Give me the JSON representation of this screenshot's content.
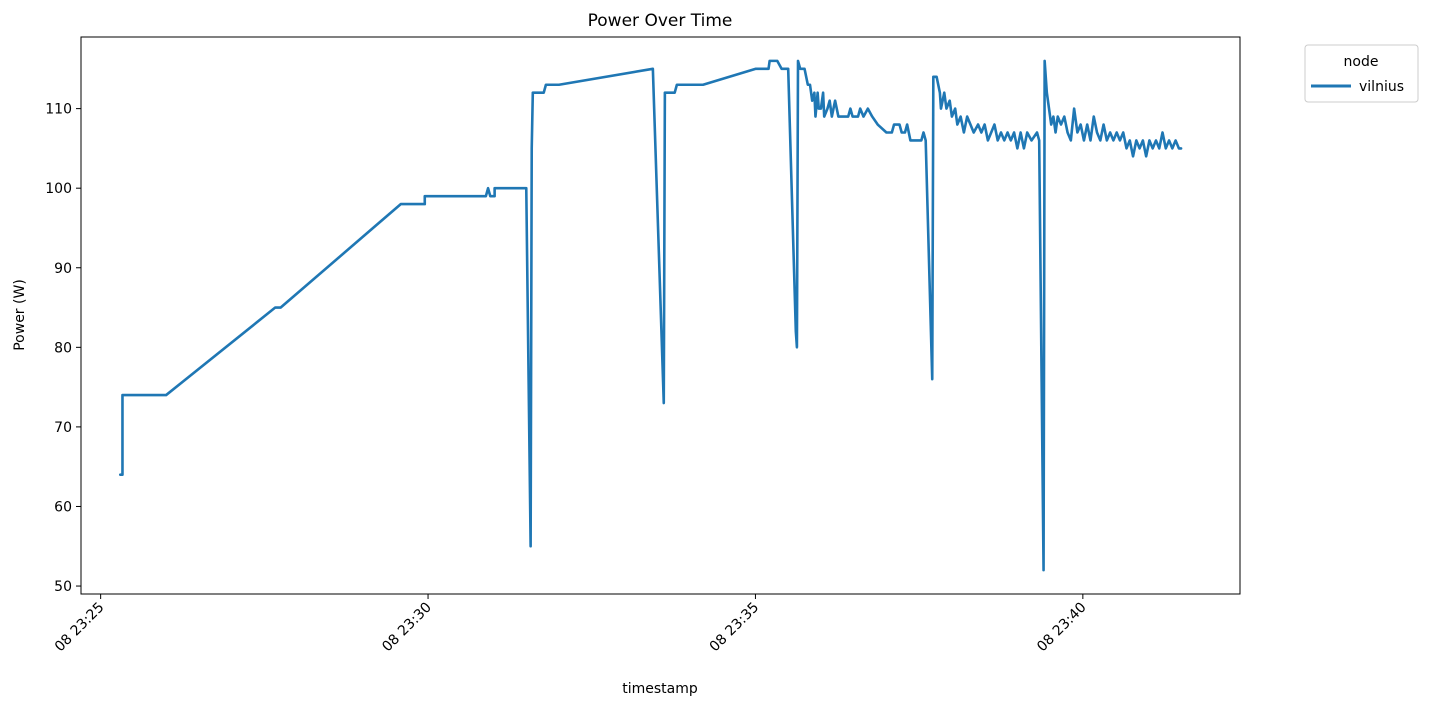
{
  "chart_data": {
    "type": "line",
    "title": "Power Over Time",
    "xlabel": "timestamp",
    "ylabel": "Power (W)",
    "x_unit": "time (hh:mm:ss)",
    "xlim": [
      "23:24:42",
      "23:42:24"
    ],
    "ylim": [
      49,
      119
    ],
    "x_ticks": [
      {
        "t": "23:25:00",
        "label": "08 23:25"
      },
      {
        "t": "23:30:00",
        "label": "08 23:30"
      },
      {
        "t": "23:35:00",
        "label": "08 23:35"
      },
      {
        "t": "23:40:00",
        "label": "08 23:40"
      }
    ],
    "y_ticks": [
      50,
      60,
      70,
      80,
      90,
      100,
      110
    ],
    "legend": {
      "title": "node",
      "position": "outside-top-right"
    },
    "grid": false,
    "series": [
      {
        "name": "vilnius",
        "color": "#1f77b4",
        "points": [
          [
            "23:25:18",
            64
          ],
          [
            "23:25:20",
            64
          ],
          [
            "23:25:20",
            74
          ],
          [
            "23:26:00",
            74
          ],
          [
            "23:27:40",
            85
          ],
          [
            "23:27:45",
            85
          ],
          [
            "23:29:35",
            98
          ],
          [
            "23:29:57",
            98
          ],
          [
            "23:29:57",
            99
          ],
          [
            "23:30:53",
            99
          ],
          [
            "23:30:55",
            100
          ],
          [
            "23:30:57",
            99
          ],
          [
            "23:31:01",
            99
          ],
          [
            "23:31:01",
            100
          ],
          [
            "23:31:30",
            100
          ],
          [
            "23:31:34",
            55
          ],
          [
            "23:31:35",
            105
          ],
          [
            "23:31:36",
            112
          ],
          [
            "23:31:46",
            112
          ],
          [
            "23:31:48",
            113
          ],
          [
            "23:32:00",
            113
          ],
          [
            "23:33:26",
            115
          ],
          [
            "23:33:36",
            73
          ],
          [
            "23:33:37",
            112
          ],
          [
            "23:33:46",
            112
          ],
          [
            "23:33:48",
            113
          ],
          [
            "23:34:12",
            113
          ],
          [
            "23:35:00",
            115
          ],
          [
            "23:35:12",
            115
          ],
          [
            "23:35:13",
            116
          ],
          [
            "23:35:20",
            116
          ],
          [
            "23:35:24",
            115
          ],
          [
            "23:35:30",
            115
          ],
          [
            "23:35:37",
            82
          ],
          [
            "23:35:38",
            80
          ],
          [
            "23:35:39",
            116
          ],
          [
            "23:35:41",
            115
          ],
          [
            "23:35:45",
            115
          ],
          [
            "23:35:48",
            113
          ],
          [
            "23:35:50",
            113
          ],
          [
            "23:35:52",
            111
          ],
          [
            "23:35:54",
            112
          ],
          [
            "23:35:55",
            109
          ],
          [
            "23:35:57",
            112
          ],
          [
            "23:35:58",
            110
          ],
          [
            "23:36:00",
            110
          ],
          [
            "23:36:02",
            112
          ],
          [
            "23:36:03",
            109
          ],
          [
            "23:36:06",
            110
          ],
          [
            "23:36:08",
            111
          ],
          [
            "23:36:10",
            109
          ],
          [
            "23:36:13",
            111
          ],
          [
            "23:36:16",
            109
          ],
          [
            "23:36:25",
            109
          ],
          [
            "23:36:27",
            110
          ],
          [
            "23:36:29",
            109
          ],
          [
            "23:36:34",
            109
          ],
          [
            "23:36:36",
            110
          ],
          [
            "23:36:39",
            109
          ],
          [
            "23:36:43",
            110
          ],
          [
            "23:36:47",
            109
          ],
          [
            "23:36:52",
            108
          ],
          [
            "23:37:00",
            107
          ],
          [
            "23:37:05",
            107
          ],
          [
            "23:37:07",
            108
          ],
          [
            "23:37:12",
            108
          ],
          [
            "23:37:14",
            107
          ],
          [
            "23:37:17",
            107
          ],
          [
            "23:37:19",
            108
          ],
          [
            "23:37:22",
            106
          ],
          [
            "23:37:32",
            106
          ],
          [
            "23:37:34",
            107
          ],
          [
            "23:37:36",
            106
          ],
          [
            "23:37:42",
            76
          ],
          [
            "23:37:43",
            114
          ],
          [
            "23:37:46",
            114
          ],
          [
            "23:37:49",
            112
          ],
          [
            "23:37:50",
            110
          ],
          [
            "23:37:53",
            112
          ],
          [
            "23:37:55",
            110
          ],
          [
            "23:37:58",
            111
          ],
          [
            "23:38:00",
            109
          ],
          [
            "23:38:03",
            110
          ],
          [
            "23:38:05",
            108
          ],
          [
            "23:38:08",
            109
          ],
          [
            "23:38:11",
            107
          ],
          [
            "23:38:14",
            109
          ],
          [
            "23:38:17",
            108
          ],
          [
            "23:38:20",
            107
          ],
          [
            "23:38:24",
            108
          ],
          [
            "23:38:27",
            107
          ],
          [
            "23:38:30",
            108
          ],
          [
            "23:38:33",
            106
          ],
          [
            "23:38:36",
            107
          ],
          [
            "23:38:39",
            108
          ],
          [
            "23:38:42",
            106
          ],
          [
            "23:38:45",
            107
          ],
          [
            "23:38:48",
            106
          ],
          [
            "23:38:51",
            107
          ],
          [
            "23:38:54",
            106
          ],
          [
            "23:38:57",
            107
          ],
          [
            "23:39:00",
            105
          ],
          [
            "23:39:03",
            107
          ],
          [
            "23:39:06",
            105
          ],
          [
            "23:39:09",
            107
          ],
          [
            "23:39:13",
            106
          ],
          [
            "23:39:18",
            107
          ],
          [
            "23:39:20",
            106
          ],
          [
            "23:39:24",
            52
          ],
          [
            "23:39:25",
            116
          ],
          [
            "23:39:27",
            112
          ],
          [
            "23:39:29",
            110
          ],
          [
            "23:39:31",
            108
          ],
          [
            "23:39:33",
            109
          ],
          [
            "23:39:35",
            107
          ],
          [
            "23:39:37",
            109
          ],
          [
            "23:39:40",
            108
          ],
          [
            "23:39:43",
            109
          ],
          [
            "23:39:46",
            107
          ],
          [
            "23:39:49",
            106
          ],
          [
            "23:39:52",
            110
          ],
          [
            "23:39:55",
            107
          ],
          [
            "23:39:58",
            108
          ],
          [
            "23:40:01",
            106
          ],
          [
            "23:40:04",
            108
          ],
          [
            "23:40:07",
            106
          ],
          [
            "23:40:10",
            109
          ],
          [
            "23:40:13",
            107
          ],
          [
            "23:40:16",
            106
          ],
          [
            "23:40:19",
            108
          ],
          [
            "23:40:22",
            106
          ],
          [
            "23:40:25",
            107
          ],
          [
            "23:40:28",
            106
          ],
          [
            "23:40:31",
            107
          ],
          [
            "23:40:34",
            106
          ],
          [
            "23:40:37",
            107
          ],
          [
            "23:40:40",
            105
          ],
          [
            "23:40:43",
            106
          ],
          [
            "23:40:46",
            104
          ],
          [
            "23:40:49",
            106
          ],
          [
            "23:40:52",
            105
          ],
          [
            "23:40:55",
            106
          ],
          [
            "23:40:58",
            104
          ],
          [
            "23:41:01",
            106
          ],
          [
            "23:41:04",
            105
          ],
          [
            "23:41:07",
            106
          ],
          [
            "23:41:10",
            105
          ],
          [
            "23:41:13",
            107
          ],
          [
            "23:41:16",
            105
          ],
          [
            "23:41:19",
            106
          ],
          [
            "23:41:22",
            105
          ],
          [
            "23:41:25",
            106
          ],
          [
            "23:41:28",
            105
          ],
          [
            "23:41:30",
            105
          ]
        ]
      }
    ]
  }
}
